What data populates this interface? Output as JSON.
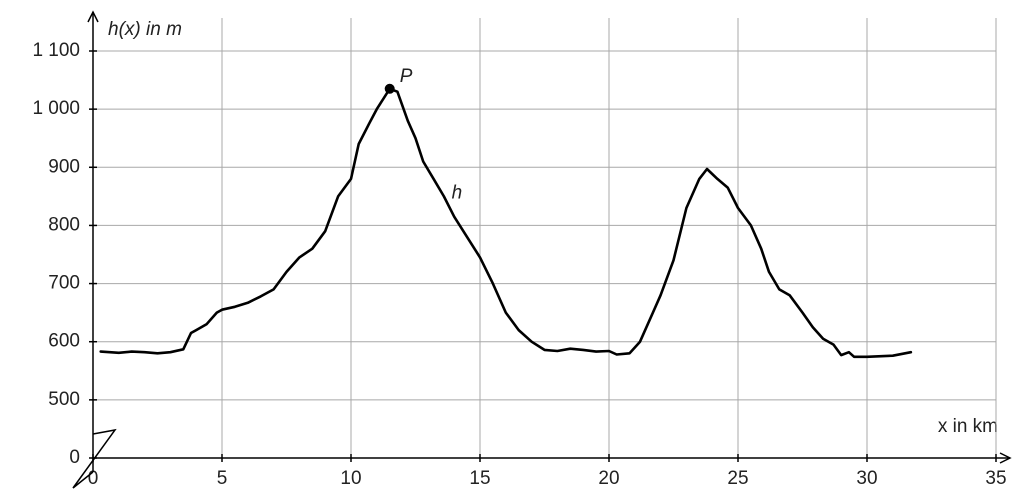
{
  "chart_data": {
    "type": "line",
    "y_label": "h(x) in m",
    "x_label": "x in km",
    "annotations": [
      {
        "text": "P",
        "x": 11.5,
        "y": 1035
      },
      {
        "text": "h",
        "x": 13.9,
        "y": 855
      }
    ],
    "x": [
      0.3,
      1,
      1.5,
      2,
      2.5,
      3,
      3.5,
      3.8,
      4,
      4.4,
      4.8,
      5,
      5.5,
      6,
      6.5,
      7,
      7.5,
      8,
      8.5,
      9,
      9.5,
      10,
      10.3,
      10.7,
      11,
      11.5,
      11.8,
      12.2,
      12.5,
      12.8,
      13.2,
      13.6,
      14,
      14.5,
      15,
      15.5,
      16,
      16.5,
      17,
      17.5,
      18,
      18.5,
      19,
      19.5,
      20,
      20.3,
      20.8,
      21.2,
      21.7,
      22,
      22.5,
      23,
      23.5,
      23.8,
      24.2,
      24.6,
      25,
      25.5,
      25.9,
      26.2,
      26.6,
      27,
      27.5,
      27.9,
      28.3,
      28.7,
      29,
      29.3,
      29.5,
      30,
      31,
      31.7
    ],
    "series": [
      {
        "name": "h",
        "color": "#000000",
        "values": [
          583,
          581,
          583,
          582,
          580,
          582,
          587,
          615,
          620,
          630,
          650,
          655,
          660,
          667,
          678,
          690,
          720,
          745,
          760,
          790,
          850,
          880,
          940,
          975,
          1000,
          1035,
          1030,
          980,
          950,
          910,
          880,
          850,
          815,
          780,
          745,
          700,
          650,
          620,
          600,
          586,
          584,
          588,
          586,
          583,
          584,
          578,
          580,
          600,
          650,
          680,
          740,
          830,
          880,
          897,
          880,
          865,
          830,
          800,
          760,
          720,
          690,
          680,
          650,
          625,
          605,
          595,
          577,
          582,
          574,
          574,
          576,
          582
        ]
      }
    ],
    "points": [
      {
        "x": 11.5,
        "y": 1035
      }
    ],
    "xlim": [
      0,
      35
    ],
    "xticks": [
      0,
      5,
      10,
      15,
      20,
      25,
      30,
      35
    ],
    "ylim": [
      0,
      1100
    ],
    "y_break": [
      0,
      400
    ],
    "yticks": [
      0,
      500,
      600,
      700,
      800,
      900,
      {
        "value": 1000,
        "label": "1 000"
      },
      {
        "value": 1100,
        "label": "1 100"
      }
    ],
    "grid": true
  }
}
